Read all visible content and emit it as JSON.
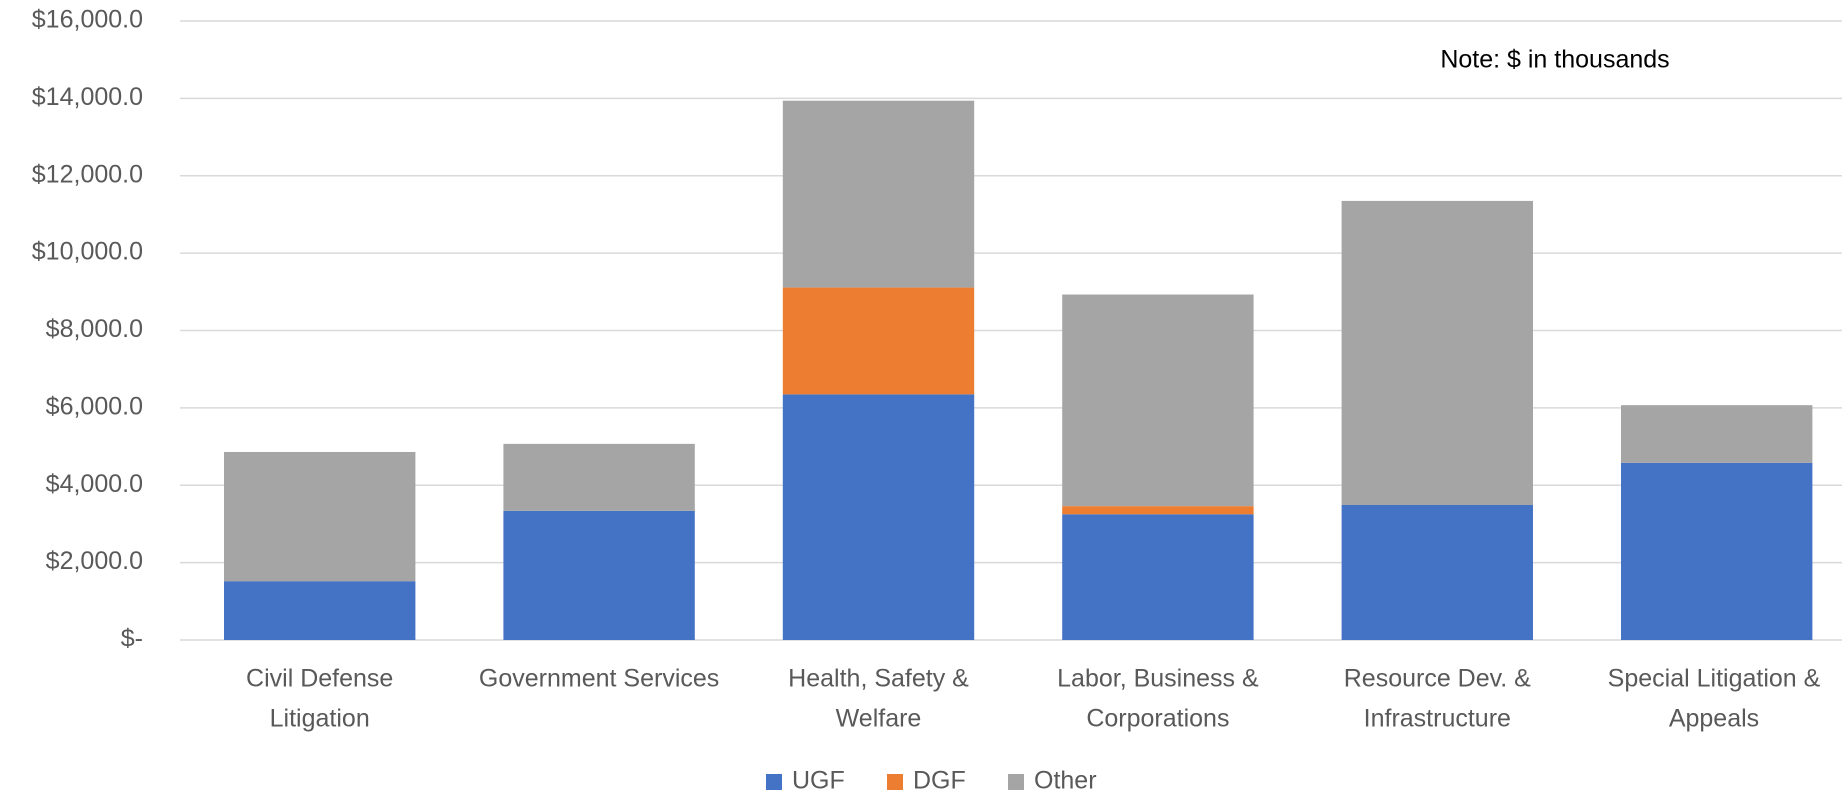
{
  "chart_data": {
    "type": "stacked_bar",
    "annotation": "Note: $ in thousands",
    "categories": [
      [
        "Civil Defense",
        "Litigation"
      ],
      [
        "Government Services"
      ],
      [
        "Health, Safety &",
        "Welfare"
      ],
      [
        "Labor, Business &",
        "Corporations"
      ],
      [
        "Resource Dev. &",
        "Infrastructure"
      ],
      [
        "Special Litigation &",
        "Appeals"
      ]
    ],
    "series": [
      {
        "name": "UGF",
        "color": "#4472c4",
        "values": [
          1520,
          3340,
          6350,
          3250,
          3490,
          4580
        ]
      },
      {
        "name": "DGF",
        "color": "#ed7d31",
        "values": [
          0,
          0,
          2760,
          210,
          0,
          0
        ]
      },
      {
        "name": "Other",
        "color": "#a5a5a5",
        "values": [
          3340,
          1730,
          4830,
          5470,
          7860,
          1490
        ]
      }
    ],
    "ylim": [
      0,
      16000
    ],
    "yticks": [
      {
        "value": 0,
        "label": "$-"
      },
      {
        "value": 2000,
        "label": "$2,000.0"
      },
      {
        "value": 4000,
        "label": "$4,000.0"
      },
      {
        "value": 6000,
        "label": "$6,000.0"
      },
      {
        "value": 8000,
        "label": "$8,000.0"
      },
      {
        "value": 10000,
        "label": "$10,000.0"
      },
      {
        "value": 12000,
        "label": "$12,000.0"
      },
      {
        "value": 14000,
        "label": "$14,000.0"
      },
      {
        "value": 16000,
        "label": "$16,000.0"
      }
    ],
    "grid": true,
    "legend": "bottom"
  }
}
